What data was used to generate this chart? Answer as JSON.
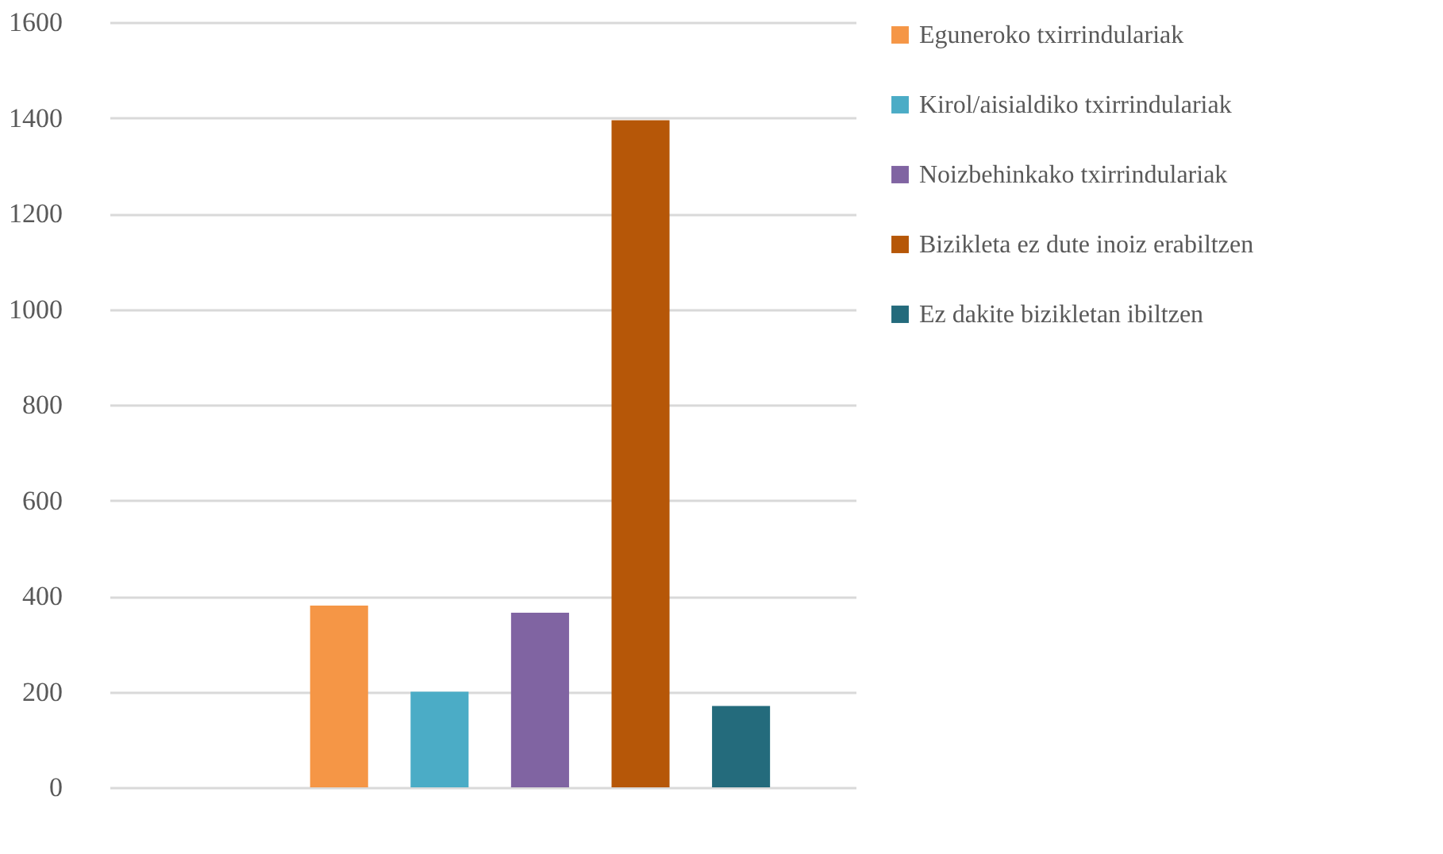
{
  "chart_data": {
    "type": "bar",
    "categories": [
      null
    ],
    "series": [
      {
        "name": "Eguneroko txirrindulariak",
        "color": "#f59646",
        "values": [
          380
        ]
      },
      {
        "name": "Kirol/aisialdiko txirrindulariak",
        "color": "#4bacc6",
        "values": [
          200
        ]
      },
      {
        "name": "Noizbehinkako txirrindulariak",
        "color": "#8064a2",
        "values": [
          365
        ]
      },
      {
        "name": "Bizikleta ez dute inoiz erabiltzen",
        "color": "#b65708",
        "values": [
          1395
        ]
      },
      {
        "name": "Ez dakite bizikletan ibiltzen",
        "color": "#246b7c",
        "values": [
          170
        ]
      }
    ],
    "ylim": [
      0,
      1600
    ],
    "yticks": [
      0,
      200,
      400,
      600,
      800,
      1000,
      1200,
      1400,
      1600
    ],
    "grid": "y",
    "legend": "right",
    "tick_labels": "y"
  }
}
